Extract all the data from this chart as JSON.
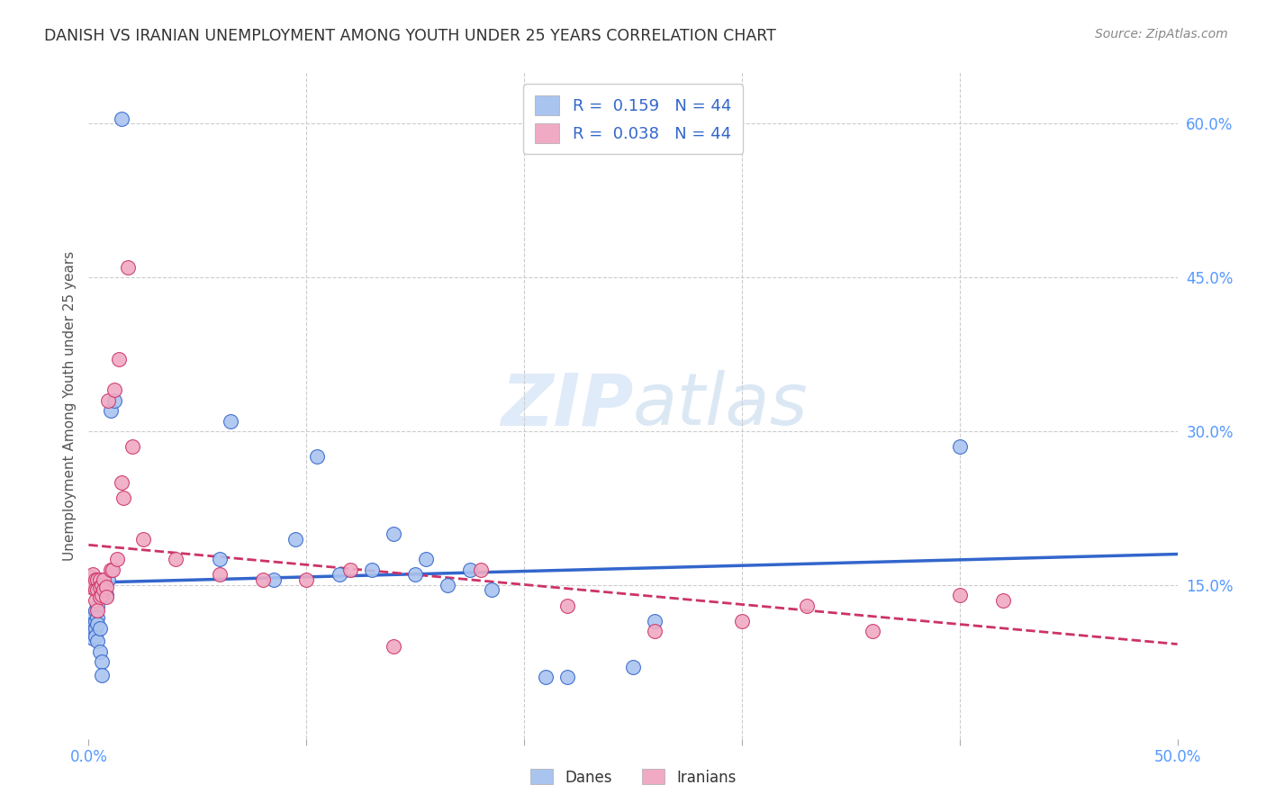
{
  "title": "DANISH VS IRANIAN UNEMPLOYMENT AMONG YOUTH UNDER 25 YEARS CORRELATION CHART",
  "source": "Source: ZipAtlas.com",
  "ylabel": "Unemployment Among Youth under 25 years",
  "xlim": [
    0.0,
    0.5
  ],
  "ylim": [
    0.0,
    0.65
  ],
  "xticks": [
    0.0,
    0.1,
    0.2,
    0.3,
    0.4,
    0.5
  ],
  "xticklabels": [
    "0.0%",
    "",
    "",
    "",
    "",
    "50.0%"
  ],
  "yticks": [
    0.15,
    0.3,
    0.45,
    0.6
  ],
  "yticklabels": [
    "15.0%",
    "30.0%",
    "45.0%",
    "60.0%"
  ],
  "background_color": "#ffffff",
  "grid_color": "#cccccc",
  "title_color": "#333333",
  "axis_color": "#5599ff",
  "legend_R_danes": "0.159",
  "legend_N_danes": "44",
  "legend_R_iranians": "0.038",
  "legend_N_iranians": "44",
  "dane_color": "#aac4f0",
  "iranian_color": "#f0aac4",
  "dane_line_color": "#3366cc",
  "iranian_line_color": "#cc3366",
  "danes_x": [
    0.001,
    0.001,
    0.001,
    0.002,
    0.002,
    0.002,
    0.002,
    0.003,
    0.003,
    0.003,
    0.003,
    0.004,
    0.004,
    0.004,
    0.004,
    0.005,
    0.005,
    0.005,
    0.006,
    0.006,
    0.007,
    0.008,
    0.009,
    0.01,
    0.012,
    0.015,
    0.06,
    0.065,
    0.085,
    0.095,
    0.105,
    0.115,
    0.13,
    0.14,
    0.15,
    0.155,
    0.165,
    0.175,
    0.185,
    0.21,
    0.22,
    0.25,
    0.26,
    0.4
  ],
  "danes_y": [
    0.12,
    0.112,
    0.108,
    0.118,
    0.112,
    0.105,
    0.098,
    0.125,
    0.115,
    0.108,
    0.1,
    0.13,
    0.118,
    0.112,
    0.095,
    0.14,
    0.108,
    0.085,
    0.075,
    0.062,
    0.155,
    0.14,
    0.155,
    0.32,
    0.33,
    0.605,
    0.175,
    0.31,
    0.155,
    0.195,
    0.275,
    0.16,
    0.165,
    0.2,
    0.16,
    0.175,
    0.15,
    0.165,
    0.145,
    0.06,
    0.06,
    0.07,
    0.115,
    0.285
  ],
  "iranians_x": [
    0.001,
    0.001,
    0.002,
    0.002,
    0.003,
    0.003,
    0.003,
    0.004,
    0.004,
    0.004,
    0.005,
    0.005,
    0.005,
    0.006,
    0.006,
    0.007,
    0.007,
    0.008,
    0.008,
    0.009,
    0.01,
    0.011,
    0.012,
    0.013,
    0.014,
    0.015,
    0.016,
    0.018,
    0.02,
    0.025,
    0.04,
    0.06,
    0.08,
    0.1,
    0.12,
    0.14,
    0.18,
    0.22,
    0.26,
    0.3,
    0.33,
    0.36,
    0.4,
    0.42
  ],
  "iranians_y": [
    0.158,
    0.148,
    0.16,
    0.15,
    0.155,
    0.145,
    0.135,
    0.155,
    0.145,
    0.125,
    0.155,
    0.148,
    0.138,
    0.15,
    0.14,
    0.155,
    0.145,
    0.148,
    0.138,
    0.33,
    0.165,
    0.165,
    0.34,
    0.175,
    0.37,
    0.25,
    0.235,
    0.46,
    0.285,
    0.195,
    0.175,
    0.16,
    0.155,
    0.155,
    0.165,
    0.09,
    0.165,
    0.13,
    0.105,
    0.115,
    0.13,
    0.105,
    0.14,
    0.135
  ]
}
